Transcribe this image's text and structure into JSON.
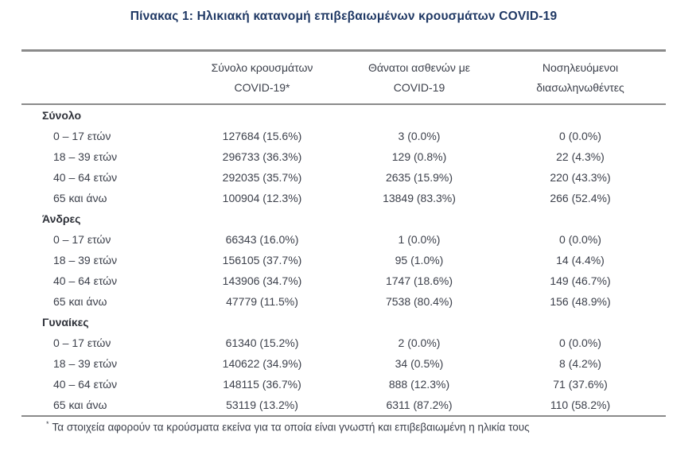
{
  "title": "Πίνακας 1: Ηλικιακή κατανομή επιβεβαιωμένων κρουσμάτων COVID-19",
  "colors": {
    "title_text": "#1f3864",
    "body_text": "#3c404b",
    "rule_lines": "#8a8a8a",
    "background": "#ffffff"
  },
  "table": {
    "columns": [
      {
        "line1": "",
        "line2": ""
      },
      {
        "line1": "Σύνολο κρουσμάτων",
        "line2": "COVID-19*"
      },
      {
        "line1": "Θάνατοι ασθενών με",
        "line2": "COVID-19"
      },
      {
        "line1": "Νοσηλευόμενοι",
        "line2": "διασωληνωθέντες"
      }
    ],
    "sections": [
      {
        "header": "Σύνολο",
        "rows": [
          {
            "label": "0 – 17 ετών",
            "cases": "127684 (15.6%)",
            "deaths": "3 (0.0%)",
            "intubated": "0 (0.0%)"
          },
          {
            "label": "18 – 39 ετών",
            "cases": "296733 (36.3%)",
            "deaths": "129 (0.8%)",
            "intubated": "22 (4.3%)"
          },
          {
            "label": "40 – 64 ετών",
            "cases": "292035 (35.7%)",
            "deaths": "2635 (15.9%)",
            "intubated": "220 (43.3%)"
          },
          {
            "label": "65 και άνω",
            "cases": "100904 (12.3%)",
            "deaths": "13849 (83.3%)",
            "intubated": "266 (52.4%)"
          }
        ]
      },
      {
        "header": "Άνδρες",
        "rows": [
          {
            "label": "0 – 17 ετών",
            "cases": "66343 (16.0%)",
            "deaths": "1 (0.0%)",
            "intubated": "0 (0.0%)"
          },
          {
            "label": "18 – 39 ετών",
            "cases": "156105 (37.7%)",
            "deaths": "95 (1.0%)",
            "intubated": "14 (4.4%)"
          },
          {
            "label": "40 – 64 ετών",
            "cases": "143906 (34.7%)",
            "deaths": "1747 (18.6%)",
            "intubated": "149 (46.7%)"
          },
          {
            "label": "65 και άνω",
            "cases": "47779 (11.5%)",
            "deaths": "7538 (80.4%)",
            "intubated": "156 (48.9%)"
          }
        ]
      },
      {
        "header": "Γυναίκες",
        "rows": [
          {
            "label": "0 – 17 ετών",
            "cases": "61340 (15.2%)",
            "deaths": "2 (0.0%)",
            "intubated": "0 (0.0%)"
          },
          {
            "label": "18 – 39 ετών",
            "cases": "140622 (34.9%)",
            "deaths": "34 (0.5%)",
            "intubated": "8 (4.2%)"
          },
          {
            "label": "40 – 64 ετών",
            "cases": "148115 (36.7%)",
            "deaths": "888 (12.3%)",
            "intubated": "71 (37.6%)"
          },
          {
            "label": "65 και άνω",
            "cases": "53119 (13.2%)",
            "deaths": "6311 (87.2%)",
            "intubated": "110 (58.2%)"
          }
        ]
      }
    ]
  },
  "footnote": {
    "marker": "*",
    "text": "Τα στοιχεία αφορούν τα κρούσματα εκείνα για τα οποία είναι γνωστή και επιβεβαιωμένη η ηλικία τους"
  }
}
